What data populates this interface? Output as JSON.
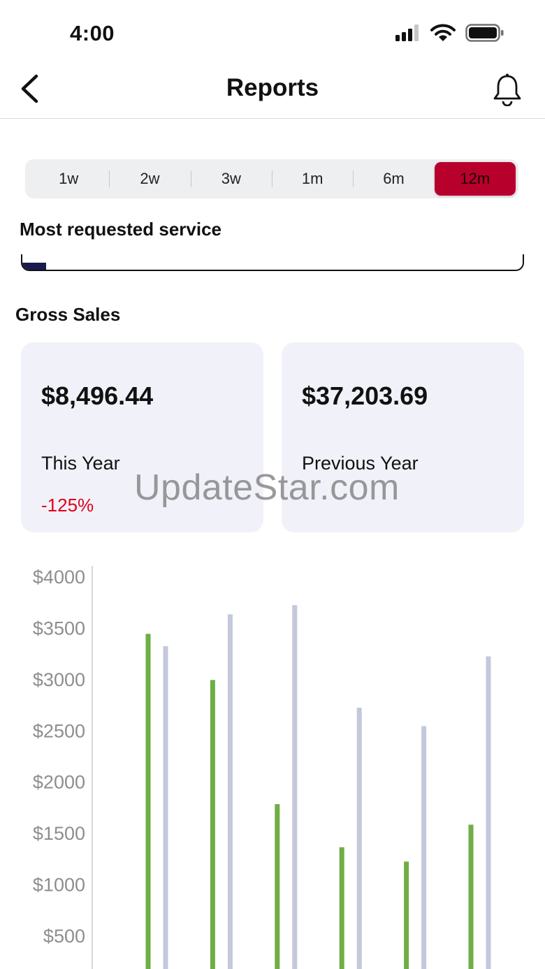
{
  "status_bar": {
    "time": "4:00"
  },
  "nav": {
    "title": "Reports"
  },
  "range_tabs": {
    "items": [
      {
        "label": "1w"
      },
      {
        "label": "2w"
      },
      {
        "label": "3w"
      },
      {
        "label": "1m"
      },
      {
        "label": "6m"
      },
      {
        "label": "12m"
      }
    ],
    "selected": "12m"
  },
  "most_requested": {
    "heading": "Most requested service"
  },
  "gross_sales": {
    "heading": "Gross Sales",
    "this_year": {
      "amount": "$8,496.44",
      "label": "This Year",
      "change": "-125%"
    },
    "previous_year": {
      "amount": "$37,203.69",
      "label": "Previous Year"
    }
  },
  "watermark": "UpdateStar.com",
  "colors": {
    "accent": "#b8002c",
    "this_year_bar": "#6fae45",
    "previous_year_bar": "#c3c8dc",
    "negative": "#e0001b",
    "card_bg": "#f1f2f9"
  },
  "chart_data": {
    "type": "bar",
    "ylim": [
      0,
      4000
    ],
    "y_ticks": [
      "$500",
      "$1000",
      "$1500",
      "$2000",
      "$2500",
      "$3000",
      "$3500",
      "$4000"
    ],
    "y_tick_values": [
      500,
      1000,
      1500,
      2000,
      2500,
      3000,
      3500,
      4000
    ],
    "series": [
      {
        "values": [
          3440,
          2990,
          1780,
          1360,
          1220,
          1580
        ]
      },
      {
        "values": [
          3320,
          3630,
          3720,
          2720,
          2540,
          3220
        ]
      }
    ]
  }
}
